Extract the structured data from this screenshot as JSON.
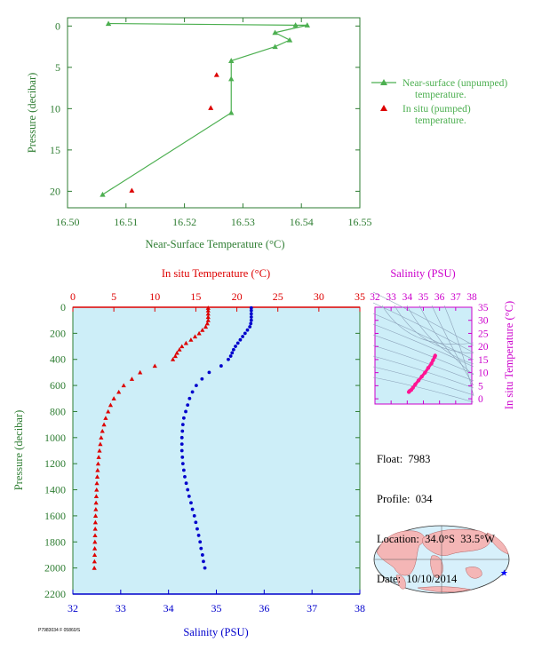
{
  "colors": {
    "near_surface": "#4caf50",
    "in_situ": "#dd0000",
    "salinity": "#0000cc",
    "salinity_title": "#cc00cc",
    "profile_bg": "#cdeef8",
    "axis_green": "#2e7d32",
    "ts_pink": "#ff1493",
    "map_ocean": "#d7f0fb",
    "map_land": "#f4b6b6"
  },
  "info": {
    "float_label": "Float:",
    "float_value": "7983",
    "profile_label": "Profile:",
    "profile_value": "034",
    "location_label": "Location:",
    "location_value": "34.0°S  33.5°W",
    "date_label": "Date:",
    "date_value": "10/10/2014"
  },
  "stamp": "P7983034 F 05860/S",
  "chart_data": [
    {
      "type": "line",
      "xlabel": "Near-Surface Temperature (°C)",
      "ylabel": "Pressure (decibar)",
      "xlim": [
        16.5,
        16.55
      ],
      "ylim": [
        22,
        -1
      ],
      "x_ticks": [
        "16.50",
        "16.51",
        "16.52",
        "16.53",
        "16.54",
        "16.55"
      ],
      "y_ticks": [
        "0",
        "5",
        "10",
        "15",
        "20"
      ],
      "legend_position": "right",
      "series": [
        {
          "name": "Near-surface (unpumped) temperature.",
          "points": [
            [
              16.507,
              -0.3
            ],
            [
              16.539,
              -0.1
            ],
            [
              16.541,
              -0.1
            ],
            [
              16.5355,
              0.8
            ],
            [
              16.538,
              1.7
            ],
            [
              16.5355,
              2.5
            ],
            [
              16.528,
              4.2
            ],
            [
              16.528,
              6.4
            ],
            [
              16.528,
              10.5
            ],
            [
              16.506,
              20.4
            ]
          ]
        },
        {
          "name": "In situ (pumped) temperature.",
          "points": [
            [
              16.5255,
              5.9
            ],
            [
              16.5245,
              9.9
            ],
            [
              16.511,
              19.9
            ]
          ]
        }
      ]
    },
    {
      "type": "scatter",
      "ylabel": "Pressure (decibar)",
      "ylim": [
        2200,
        0
      ],
      "y_ticks": [
        "0",
        "200",
        "400",
        "600",
        "800",
        "1000",
        "1200",
        "1400",
        "1600",
        "1800",
        "2000",
        "2200"
      ],
      "top_axis": {
        "label": "In situ Temperature (°C)",
        "range": [
          0,
          35
        ],
        "ticks": [
          "0",
          "5",
          "10",
          "15",
          "20",
          "25",
          "30",
          "35"
        ]
      },
      "bottom_axis": {
        "label": "Salinity (PSU)",
        "range": [
          32,
          38
        ],
        "ticks": [
          "32",
          "33",
          "34",
          "35",
          "36",
          "37",
          "38"
        ]
      },
      "temperature": {
        "pressure": [
          5,
          25,
          50,
          75,
          100,
          125,
          150,
          175,
          200,
          225,
          250,
          275,
          300,
          325,
          350,
          375,
          400,
          450,
          500,
          550,
          600,
          650,
          700,
          750,
          800,
          850,
          900,
          950,
          1000,
          1050,
          1100,
          1150,
          1200,
          1250,
          1300,
          1350,
          1400,
          1450,
          1500,
          1550,
          1600,
          1650,
          1700,
          1750,
          1800,
          1850,
          1900,
          1950,
          2000
        ],
        "values": [
          16.5,
          16.5,
          16.5,
          16.5,
          16.5,
          16.4,
          16.2,
          15.8,
          15.4,
          14.9,
          14.4,
          13.8,
          13.3,
          13.0,
          12.7,
          12.5,
          12.2,
          10.0,
          8.2,
          7.2,
          6.2,
          5.6,
          5.0,
          4.6,
          4.3,
          4.0,
          3.8,
          3.6,
          3.45,
          3.35,
          3.25,
          3.15,
          3.08,
          3.02,
          2.98,
          2.93,
          2.9,
          2.86,
          2.83,
          2.8,
          2.77,
          2.75,
          2.73,
          2.71,
          2.69,
          2.67,
          2.66,
          2.64,
          2.62
        ]
      },
      "salinity": {
        "pressure": [
          5,
          25,
          50,
          75,
          100,
          125,
          150,
          175,
          200,
          225,
          250,
          275,
          300,
          325,
          350,
          375,
          400,
          450,
          500,
          550,
          600,
          650,
          700,
          750,
          800,
          850,
          900,
          950,
          1000,
          1050,
          1100,
          1150,
          1200,
          1250,
          1300,
          1350,
          1400,
          1450,
          1500,
          1550,
          1600,
          1650,
          1700,
          1750,
          1800,
          1850,
          1900,
          1950,
          2000
        ],
        "values": [
          35.73,
          35.73,
          35.73,
          35.73,
          35.73,
          35.72,
          35.7,
          35.65,
          35.6,
          35.55,
          35.5,
          35.45,
          35.4,
          35.36,
          35.33,
          35.3,
          35.25,
          35.1,
          34.85,
          34.7,
          34.58,
          34.5,
          34.44,
          34.4,
          34.36,
          34.32,
          34.3,
          34.29,
          34.28,
          34.28,
          34.28,
          34.29,
          34.3,
          34.32,
          34.34,
          34.37,
          34.4,
          34.43,
          34.47,
          34.5,
          34.54,
          34.57,
          34.6,
          34.63,
          34.66,
          34.68,
          34.71,
          34.73,
          34.76
        ]
      }
    },
    {
      "type": "scatter",
      "title": "Salinity (PSU)",
      "ylabel": "In situ Temperature (°C)",
      "xlim": [
        32,
        38
      ],
      "ylim": [
        -2,
        35
      ],
      "x_ticks": [
        "32",
        "33",
        "34",
        "35",
        "36",
        "37",
        "38"
      ],
      "y_ticks": [
        "0",
        "5",
        "10",
        "15",
        "20",
        "25",
        "30",
        "35"
      ],
      "points": [
        [
          34.1,
          2.6
        ],
        [
          34.15,
          3.0
        ],
        [
          34.25,
          3.4
        ],
        [
          34.35,
          4.2
        ],
        [
          34.5,
          5.5
        ],
        [
          34.7,
          7.0
        ],
        [
          34.9,
          8.5
        ],
        [
          35.1,
          10.0
        ],
        [
          35.3,
          11.8
        ],
        [
          35.5,
          13.5
        ],
        [
          35.6,
          14.8
        ],
        [
          35.7,
          16.0
        ],
        [
          35.73,
          16.5
        ]
      ]
    },
    {
      "type": "map",
      "marker": {
        "lat": -34.0,
        "lon": -33.5
      }
    }
  ]
}
